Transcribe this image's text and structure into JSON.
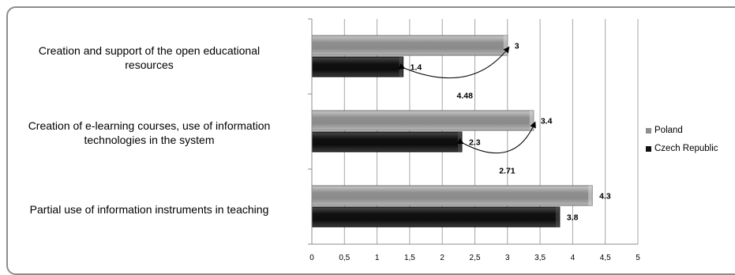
{
  "chart_data": {
    "type": "bar",
    "orientation": "horizontal",
    "categories": [
      [
        "Creation and support of the open educational",
        "resources"
      ],
      [
        "Creation of e-learning courses, use of information",
        "technologies in the system"
      ],
      [
        "Partial use of information instruments in teaching"
      ]
    ],
    "series": [
      {
        "name": "Poland",
        "values": [
          3,
          3.4,
          4.3
        ],
        "labels": [
          "3",
          "3.4",
          "4.3"
        ],
        "color": "#9a9a9a"
      },
      {
        "name": "Czech Republic",
        "values": [
          1.4,
          2.3,
          3.8
        ],
        "labels": [
          "1.4",
          "2.3",
          "3.8"
        ],
        "color": "#1c1c1c"
      }
    ],
    "annotations": [
      {
        "category_index": 0,
        "label": "4.48"
      },
      {
        "category_index": 1,
        "label": "2.71"
      }
    ],
    "xlim": [
      0,
      5
    ],
    "xticks": [
      "0",
      "0,5",
      "1",
      "1,5",
      "2",
      "2,5",
      "3",
      "3,5",
      "4",
      "4,5",
      "5"
    ],
    "grid": true,
    "legend_position": "right"
  }
}
